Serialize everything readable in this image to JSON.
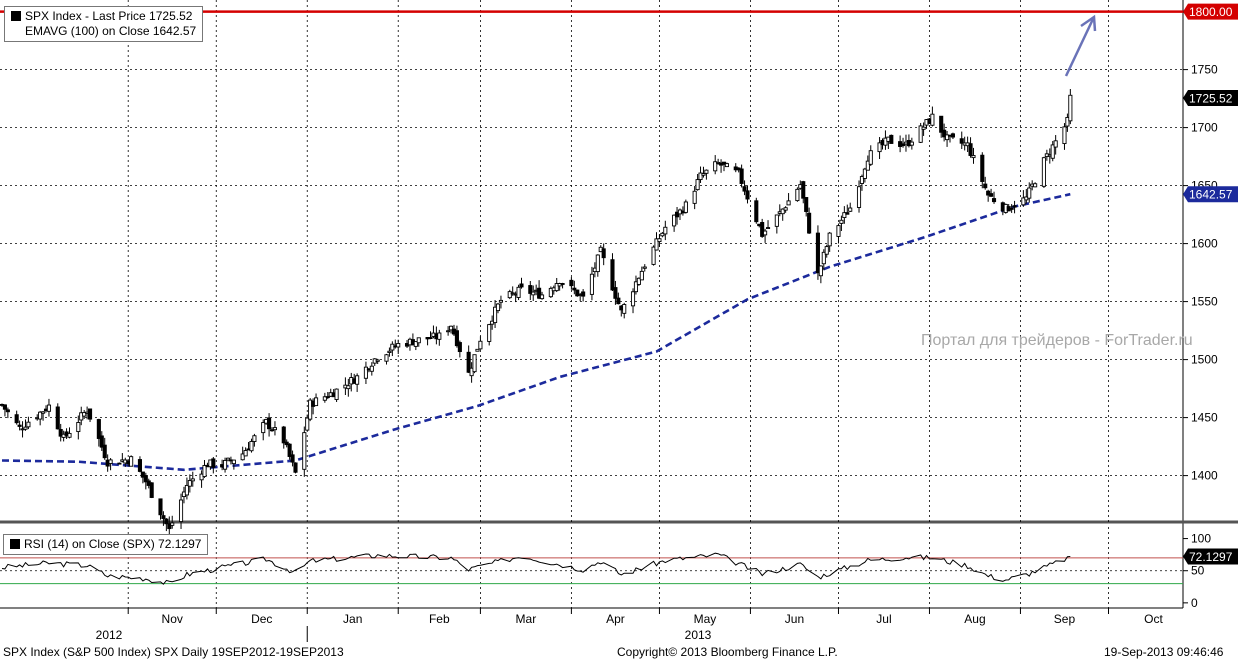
{
  "legend_main": {
    "line1": "SPX Index - Last Price 1725.52",
    "line2": "EMAVG (100) on Close  1642.57"
  },
  "legend_rsi": "RSI (14) on Close (SPX) 72.1297",
  "watermark": "Портал для трейдеров - ForTrader.ru",
  "footer": {
    "left": "SPX Index (S&P 500 Index) SPX  Daily 19SEP2012-19SEP2013",
    "center": "Copyright© 2013 Bloomberg Finance L.P.",
    "right": "19-Sep-2013 09:46:46"
  },
  "colors": {
    "candle": "#000000",
    "ema": "#1c2a9c",
    "resistance": "#d40000",
    "arrow": "#6a73b8",
    "last_price_tag": "#000000",
    "ema_tag": "#1c2a9c",
    "rsi_upper": "#c0504d",
    "rsi_lower": "#2fa84a"
  },
  "chart_data": [
    {
      "type": "candlestick",
      "title": "SPX Index - Last Price",
      "interval": "Daily",
      "ylim": [
        1360,
        1810
      ],
      "y_ticks": [
        1400,
        1450,
        1500,
        1550,
        1600,
        1650,
        1700,
        1750
      ],
      "grid": true,
      "x_months": [
        "Nov",
        "Dec",
        "Jan",
        "Feb",
        "Mar",
        "Apr",
        "May",
        "Jun",
        "Jul",
        "Aug",
        "Sep",
        "Oct"
      ],
      "x_years": [
        "2012",
        "2013"
      ],
      "close_path": [
        [
          "2012-09-19",
          1461
        ],
        [
          "2012-09-25",
          1441
        ],
        [
          "2012-10-05",
          1460
        ],
        [
          "2012-10-10",
          1432
        ],
        [
          "2012-10-18",
          1457
        ],
        [
          "2012-10-25",
          1412
        ],
        [
          "2012-11-02",
          1414
        ],
        [
          "2012-11-07",
          1395
        ],
        [
          "2012-11-15",
          1353
        ],
        [
          "2012-11-21",
          1392
        ],
        [
          "2012-11-28",
          1410
        ],
        [
          "2012-12-03",
          1409
        ],
        [
          "2012-12-10",
          1419
        ],
        [
          "2012-12-18",
          1446
        ],
        [
          "2012-12-24",
          1430
        ],
        [
          "2012-12-28",
          1402
        ],
        [
          "2013-01-02",
          1462
        ],
        [
          "2013-01-10",
          1472
        ],
        [
          "2013-01-18",
          1485
        ],
        [
          "2013-01-25",
          1503
        ],
        [
          "2013-02-01",
          1513
        ],
        [
          "2013-02-08",
          1517
        ],
        [
          "2013-02-15",
          1520
        ],
        [
          "2013-02-19",
          1530
        ],
        [
          "2013-02-25",
          1488
        ],
        [
          "2013-03-01",
          1518
        ],
        [
          "2013-03-08",
          1551
        ],
        [
          "2013-03-15",
          1560
        ],
        [
          "2013-03-22",
          1556
        ],
        [
          "2013-03-28",
          1569
        ],
        [
          "2013-04-05",
          1553
        ],
        [
          "2013-04-11",
          1593
        ],
        [
          "2013-04-18",
          1541
        ],
        [
          "2013-04-26",
          1582
        ],
        [
          "2013-05-03",
          1614
        ],
        [
          "2013-05-10",
          1633
        ],
        [
          "2013-05-15",
          1658
        ],
        [
          "2013-05-21",
          1669
        ],
        [
          "2013-05-28",
          1660
        ],
        [
          "2013-06-05",
          1608
        ],
        [
          "2013-06-11",
          1626
        ],
        [
          "2013-06-18",
          1651
        ],
        [
          "2013-06-24",
          1573
        ],
        [
          "2013-06-28",
          1606
        ],
        [
          "2013-07-05",
          1631
        ],
        [
          "2013-07-11",
          1675
        ],
        [
          "2013-07-18",
          1689
        ],
        [
          "2013-07-24",
          1685
        ],
        [
          "2013-08-02",
          1709
        ],
        [
          "2013-08-07",
          1690
        ],
        [
          "2013-08-14",
          1685
        ],
        [
          "2013-08-21",
          1642
        ],
        [
          "2013-08-27",
          1630
        ],
        [
          "2013-09-03",
          1639
        ],
        [
          "2013-09-09",
          1671
        ],
        [
          "2013-09-13",
          1688
        ],
        [
          "2013-09-17",
          1705
        ],
        [
          "2013-09-18",
          1725.52
        ]
      ],
      "ema_100": [
        [
          "2012-09-19",
          1413
        ],
        [
          "2012-10-15",
          1412
        ],
        [
          "2012-11-20",
          1405
        ],
        [
          "2012-12-28",
          1413
        ],
        [
          "2013-01-31",
          1440
        ],
        [
          "2013-02-28",
          1460
        ],
        [
          "2013-03-28",
          1485
        ],
        [
          "2013-04-30",
          1507
        ],
        [
          "2013-05-31",
          1552
        ],
        [
          "2013-06-28",
          1580
        ],
        [
          "2013-07-31",
          1606
        ],
        [
          "2013-08-30",
          1632
        ],
        [
          "2013-09-18",
          1642.57
        ]
      ],
      "last_price": 1725.52,
      "ema_last": 1642.57,
      "resistance_level": 1800.0,
      "annotation": "upward arrow toward 1800"
    },
    {
      "type": "line",
      "title": "RSI (14) on Close (SPX)",
      "ylim": [
        -8,
        118
      ],
      "y_ticks": [
        0,
        50,
        100
      ],
      "thresholds": [
        70,
        30
      ],
      "last_value": 72.1297,
      "values": [
        [
          "2012-09-19",
          55
        ],
        [
          "2012-10-05",
          62
        ],
        [
          "2012-10-18",
          58
        ],
        [
          "2012-10-25",
          42
        ],
        [
          "2012-11-07",
          38
        ],
        [
          "2012-11-15",
          30
        ],
        [
          "2012-11-21",
          44
        ],
        [
          "2012-12-03",
          55
        ],
        [
          "2012-12-18",
          68
        ],
        [
          "2012-12-28",
          47
        ],
        [
          "2013-01-02",
          65
        ],
        [
          "2013-01-25",
          74
        ],
        [
          "2013-02-19",
          70
        ],
        [
          "2013-02-25",
          52
        ],
        [
          "2013-03-08",
          65
        ],
        [
          "2013-03-15",
          73
        ],
        [
          "2013-04-05",
          52
        ],
        [
          "2013-04-11",
          65
        ],
        [
          "2013-04-18",
          44
        ],
        [
          "2013-05-03",
          66
        ],
        [
          "2013-05-21",
          75
        ],
        [
          "2013-06-05",
          45
        ],
        [
          "2013-06-18",
          60
        ],
        [
          "2013-06-24",
          40
        ],
        [
          "2013-07-11",
          66
        ],
        [
          "2013-07-24",
          71
        ],
        [
          "2013-08-02",
          70
        ],
        [
          "2013-08-14",
          58
        ],
        [
          "2013-08-21",
          42
        ],
        [
          "2013-08-27",
          36
        ],
        [
          "2013-09-03",
          44
        ],
        [
          "2013-09-13",
          62
        ],
        [
          "2013-09-18",
          72.13
        ]
      ]
    }
  ]
}
